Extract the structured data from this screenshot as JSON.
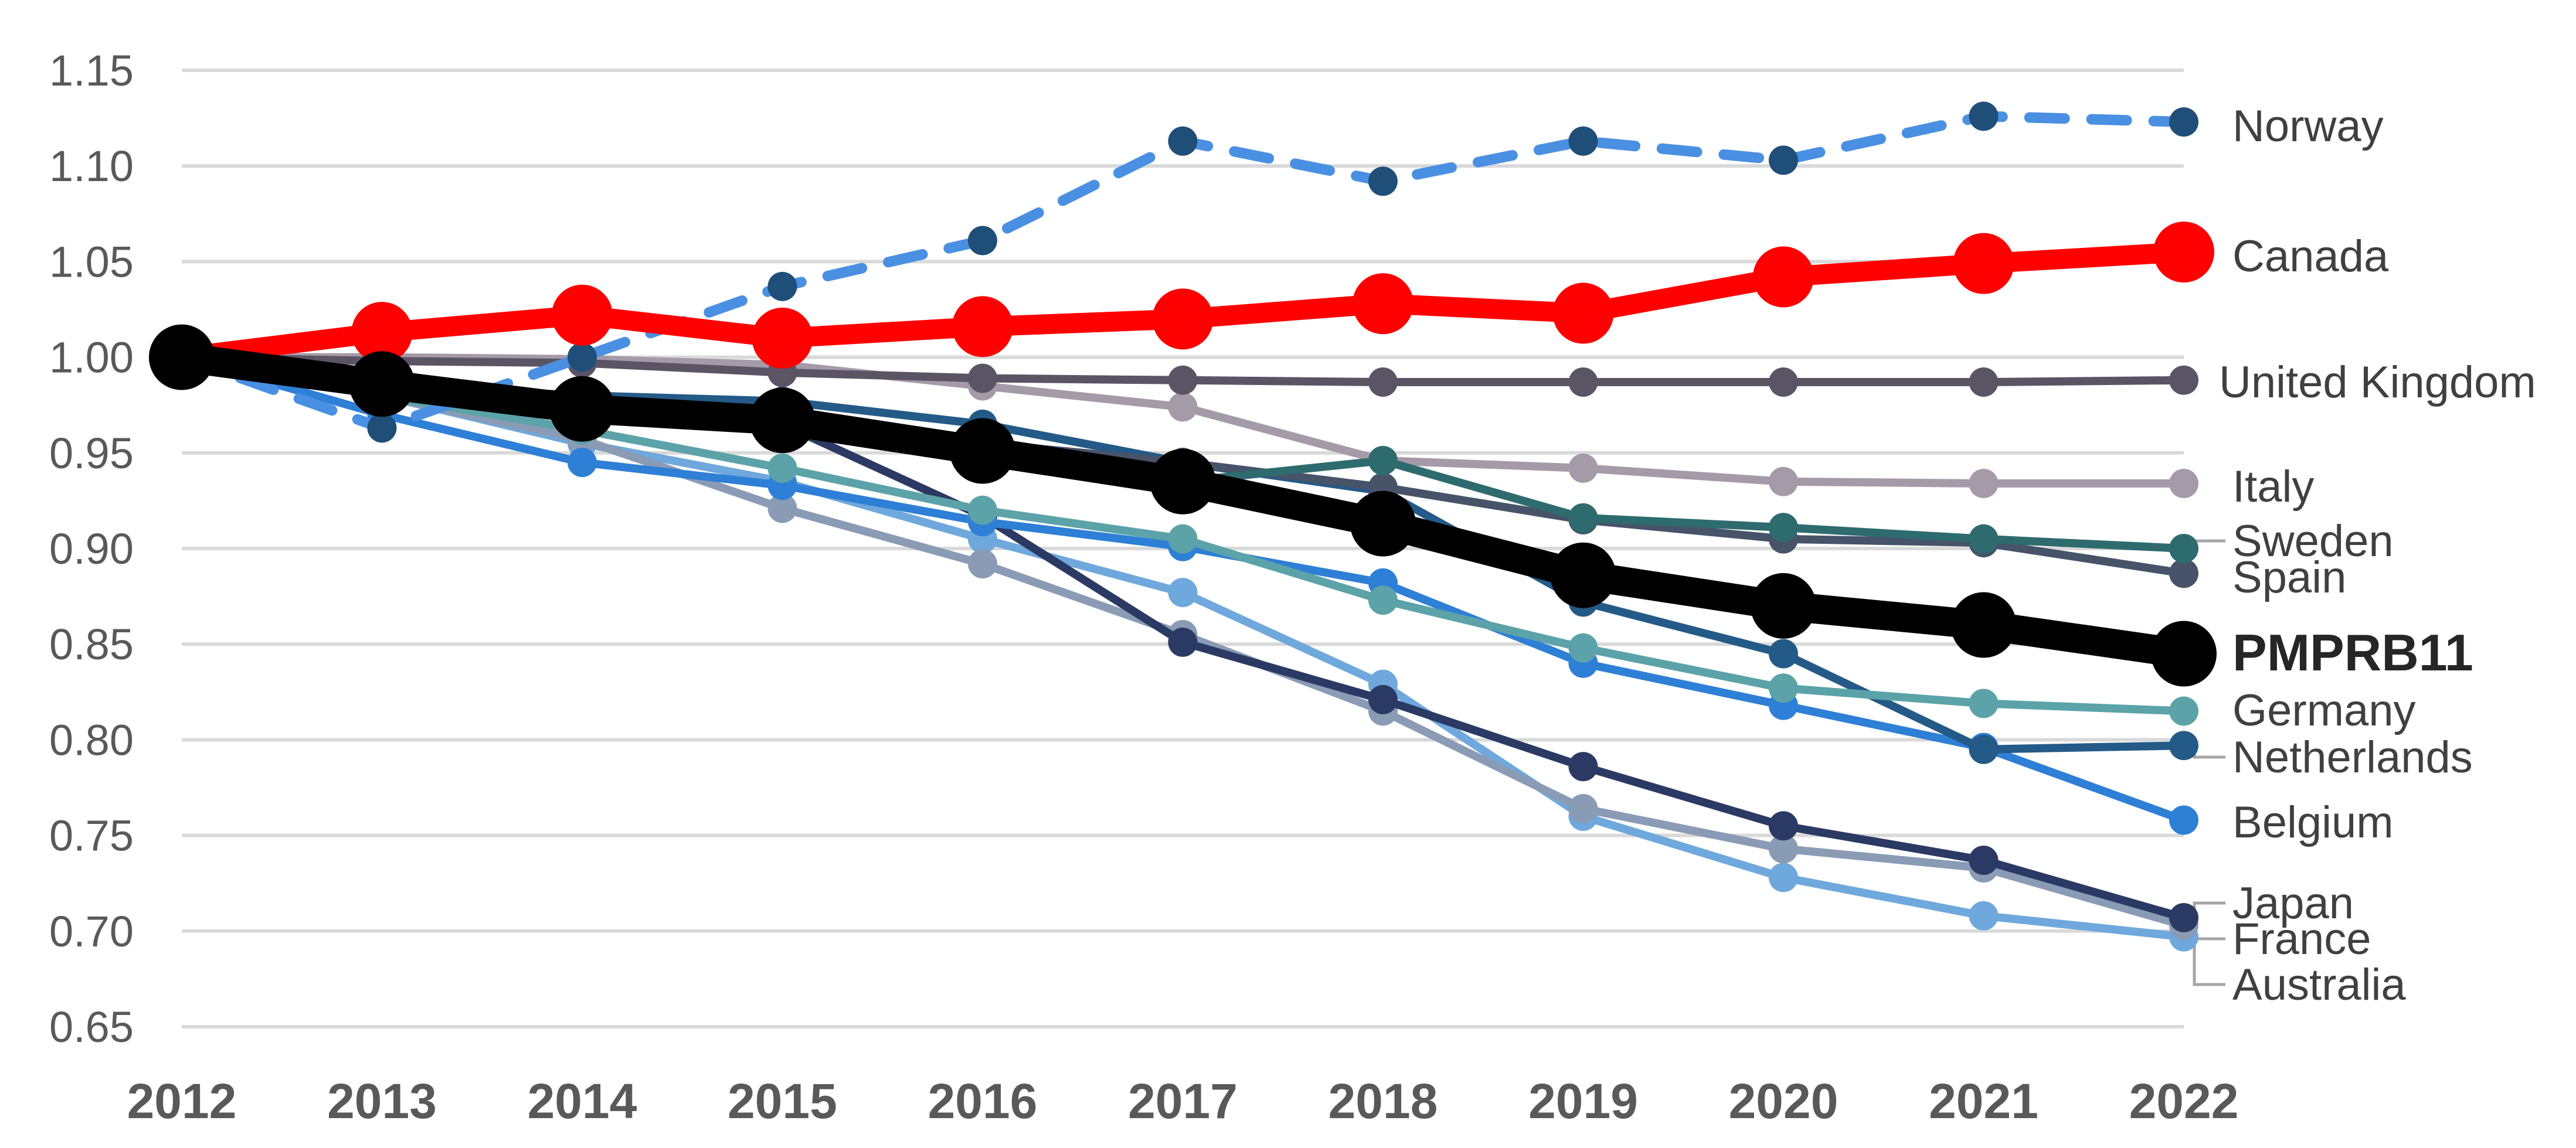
{
  "chart_data": {
    "type": "line",
    "title": "",
    "xlabel": "",
    "ylabel": "",
    "x": [
      "2012",
      "2013",
      "2014",
      "2015",
      "2016",
      "2017",
      "2018",
      "2019",
      "2020",
      "2021",
      "2022"
    ],
    "ylim": [
      0.65,
      1.15
    ],
    "yticks": [
      "0.65",
      "0.70",
      "0.75",
      "0.80",
      "0.85",
      "0.90",
      "0.95",
      "1.00",
      "1.05",
      "1.10",
      "1.15"
    ],
    "grid": true,
    "legend": "direct labels at right end of lines",
    "series": [
      {
        "name": "Norway",
        "color": "#4a90e2",
        "style": "dashed",
        "marker_color": "#1f4e79",
        "values": [
          1.0,
          0.963,
          1.0,
          1.037,
          1.061,
          1.113,
          1.092,
          1.113,
          1.103,
          1.126,
          1.123
        ]
      },
      {
        "name": "Canada",
        "color": "#ff0000",
        "style": "thick",
        "values": [
          1.0,
          1.013,
          1.022,
          1.01,
          1.016,
          1.02,
          1.028,
          1.023,
          1.042,
          1.049,
          1.055
        ]
      },
      {
        "name": "United Kingdom",
        "color": "#5a5465",
        "values": [
          1.0,
          0.998,
          0.997,
          0.992,
          0.989,
          0.988,
          0.987,
          0.987,
          0.987,
          0.987,
          0.988
        ]
      },
      {
        "name": "Italy",
        "color": "#a59aa8",
        "values": [
          1.0,
          1.0,
          0.999,
          0.996,
          0.985,
          0.974,
          0.946,
          0.942,
          0.935,
          0.934,
          0.934
        ]
      },
      {
        "name": "Sweden",
        "color": "#2e6b6e",
        "values": [
          1.0,
          0.987,
          0.975,
          0.968,
          0.955,
          0.935,
          0.946,
          0.916,
          0.911,
          0.905,
          0.9
        ]
      },
      {
        "name": "Spain",
        "color": "#465369",
        "values": [
          1.0,
          0.987,
          0.975,
          0.97,
          0.955,
          0.945,
          0.932,
          0.915,
          0.905,
          0.903,
          0.887
        ]
      },
      {
        "name": "PMPRB11",
        "color": "#000000",
        "style": "extra-thick",
        "bold": true,
        "values": [
          1.0,
          0.986,
          0.973,
          0.967,
          0.951,
          0.935,
          0.913,
          0.886,
          0.87,
          0.86,
          0.845
        ]
      },
      {
        "name": "Germany",
        "color": "#5ba3a8",
        "values": [
          1.0,
          0.98,
          0.962,
          0.942,
          0.92,
          0.905,
          0.873,
          0.848,
          0.827,
          0.819,
          0.815
        ]
      },
      {
        "name": "Netherlands",
        "color": "#245a87",
        "values": [
          1.0,
          0.985,
          0.98,
          0.977,
          0.965,
          0.945,
          0.93,
          0.872,
          0.845,
          0.795,
          0.797
        ]
      },
      {
        "name": "Belgium",
        "color": "#2e7fd6",
        "values": [
          1.0,
          0.97,
          0.945,
          0.933,
          0.914,
          0.901,
          0.882,
          0.84,
          0.818,
          0.796,
          0.758
        ]
      },
      {
        "name": "Japan",
        "color": "#2b3a64",
        "values": [
          1.0,
          0.99,
          0.974,
          0.965,
          0.917,
          0.851,
          0.821,
          0.786,
          0.755,
          0.737,
          0.707
        ]
      },
      {
        "name": "France",
        "color": "#8a9bb5",
        "values": [
          1.0,
          0.98,
          0.957,
          0.921,
          0.892,
          0.855,
          0.815,
          0.764,
          0.743,
          0.733,
          0.703
        ]
      },
      {
        "name": "Australia",
        "color": "#6fa8dc",
        "values": [
          1.0,
          0.98,
          0.955,
          0.935,
          0.905,
          0.877,
          0.829,
          0.76,
          0.728,
          0.708,
          0.697
        ]
      }
    ]
  }
}
